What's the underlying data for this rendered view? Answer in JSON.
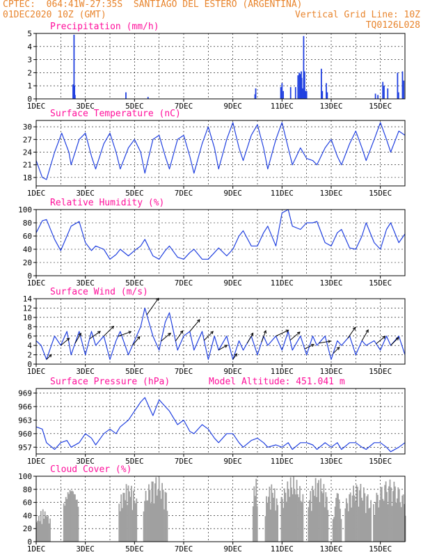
{
  "header": {
    "line1": "CPTEC:  064:41W-27:35S  SANTIAGO DEL ESTERO (ARGENTINA)",
    "line2_left": "01DEC2020 10Z (GMT)",
    "line2_right": "Vertical Grid Line: 10Z",
    "line3_right": "TQ0126L028",
    "model_altitude": "Model Altitude: 451.041 m"
  },
  "colors": {
    "header": "#e8842c",
    "panel_title": "#ff0f9b",
    "line": "#2040e0",
    "cloud": "#a0a0a0",
    "axis": "#000000"
  },
  "x_axis": {
    "start_day": 1,
    "end_day": 16,
    "tick_labels": [
      "1DEC",
      "3DEC",
      "5DEC",
      "7DEC",
      "9DEC",
      "11DEC",
      "13DEC",
      "15DEC"
    ],
    "tick_days": [
      1,
      3,
      5,
      7,
      9,
      11,
      13,
      15
    ]
  },
  "chart_data": [
    {
      "id": "precip",
      "type": "bar",
      "title": "Precipitation (mm/h)",
      "ylim": [
        0,
        5
      ],
      "yticks": [
        0,
        1,
        2,
        3,
        4,
        5
      ],
      "x_unit": "day of December 2020 (10Z)",
      "points": [
        [
          2.5,
          1.1
        ],
        [
          2.52,
          1.1
        ],
        [
          2.54,
          4.9
        ],
        [
          2.56,
          1.0
        ],
        [
          2.58,
          0.3
        ],
        [
          4.65,
          0.5
        ],
        [
          5.55,
          0.15
        ],
        [
          9.9,
          0.35
        ],
        [
          9.93,
          0.8
        ],
        [
          10.95,
          0.9
        ],
        [
          11.0,
          1.2
        ],
        [
          11.05,
          0.6
        ],
        [
          11.35,
          0.9
        ],
        [
          11.55,
          0.9
        ],
        [
          11.65,
          1.8
        ],
        [
          11.7,
          2.0
        ],
        [
          11.75,
          1.9
        ],
        [
          11.78,
          2.1
        ],
        [
          11.8,
          1.6
        ],
        [
          11.83,
          0.8
        ],
        [
          11.88,
          4.8
        ],
        [
          11.92,
          2.1
        ],
        [
          11.96,
          0.6
        ],
        [
          12.0,
          0.6
        ],
        [
          12.6,
          2.3
        ],
        [
          12.64,
          0.6
        ],
        [
          12.8,
          1.2
        ],
        [
          12.84,
          0.5
        ],
        [
          14.8,
          0.4
        ],
        [
          14.9,
          0.3
        ],
        [
          15.1,
          1.3
        ],
        [
          15.15,
          1.0
        ],
        [
          15.3,
          0.8
        ],
        [
          15.7,
          2.0
        ],
        [
          15.74,
          0.5
        ],
        [
          15.9,
          2.1
        ],
        [
          15.95,
          1.4
        ]
      ]
    },
    {
      "id": "temp",
      "type": "line",
      "title": "Surface Temperature (nC)",
      "ylim": [
        16,
        31.5
      ],
      "yticks": [
        18,
        21,
        24,
        27,
        30
      ],
      "x": [
        1.0,
        1.25,
        1.42,
        1.75,
        2.04,
        2.33,
        2.42,
        2.75,
        3.0,
        3.25,
        3.42,
        3.75,
        4.0,
        4.25,
        4.42,
        4.75,
        5.0,
        5.25,
        5.42,
        5.75,
        6.0,
        6.25,
        6.42,
        6.75,
        7.0,
        7.25,
        7.42,
        7.75,
        8.0,
        8.25,
        8.42,
        8.75,
        9.0,
        9.25,
        9.42,
        9.75,
        10.0,
        10.25,
        10.42,
        10.75,
        11.0,
        11.25,
        11.42,
        11.75,
        12.0,
        12.25,
        12.42,
        12.75,
        13.0,
        13.25,
        13.42,
        13.75,
        14.0,
        14.25,
        14.42,
        14.75,
        15.0,
        15.25,
        15.42,
        15.75,
        16.0
      ],
      "y": [
        22,
        18,
        17.5,
        24,
        28.5,
        24,
        21,
        27,
        28.5,
        23,
        20,
        26,
        28.5,
        24,
        20,
        25,
        27,
        24,
        19,
        27,
        28,
        23,
        20,
        27,
        28,
        23,
        19,
        26,
        30,
        25,
        20,
        27,
        31,
        25,
        22,
        28,
        30.5,
        25,
        20,
        27,
        31,
        25,
        21,
        25,
        22.5,
        22,
        21,
        25,
        27,
        23,
        21,
        26,
        29,
        25,
        22,
        27,
        31,
        27,
        24,
        29,
        28
      ]
    },
    {
      "id": "rh",
      "type": "line",
      "title": "Relative Humidity (%)",
      "ylim": [
        0,
        100
      ],
      "yticks": [
        0,
        20,
        40,
        60,
        80,
        100
      ],
      "x": [
        1.0,
        1.25,
        1.42,
        1.75,
        2.0,
        2.25,
        2.42,
        2.75,
        3.0,
        3.25,
        3.42,
        3.75,
        4.0,
        4.25,
        4.42,
        4.75,
        5.0,
        5.25,
        5.42,
        5.75,
        6.0,
        6.25,
        6.42,
        6.75,
        7.0,
        7.25,
        7.42,
        7.75,
        8.0,
        8.25,
        8.42,
        8.75,
        9.0,
        9.25,
        9.42,
        9.75,
        10.0,
        10.25,
        10.42,
        10.75,
        11.0,
        11.25,
        11.42,
        11.75,
        12.0,
        12.25,
        12.42,
        12.75,
        13.0,
        13.25,
        13.42,
        13.75,
        14.0,
        14.25,
        14.42,
        14.75,
        15.0,
        15.25,
        15.42,
        15.75,
        16.0
      ],
      "y": [
        65,
        83,
        85,
        55,
        38,
        60,
        75,
        82,
        50,
        38,
        45,
        40,
        25,
        32,
        40,
        30,
        38,
        45,
        55,
        30,
        25,
        38,
        45,
        28,
        25,
        35,
        40,
        25,
        25,
        35,
        42,
        30,
        40,
        60,
        68,
        45,
        45,
        65,
        75,
        45,
        95,
        100,
        75,
        70,
        80,
        80,
        82,
        50,
        45,
        65,
        70,
        42,
        40,
        60,
        80,
        50,
        40,
        70,
        80,
        50,
        63
      ]
    },
    {
      "id": "wind",
      "type": "line",
      "title": "Surface Wind (m/s)",
      "ylim": [
        0,
        14
      ],
      "yticks": [
        0,
        2,
        4,
        6,
        8,
        10,
        12,
        14
      ],
      "x": [
        1.0,
        1.2,
        1.42,
        1.75,
        2.0,
        2.25,
        2.42,
        2.75,
        3.0,
        3.25,
        3.42,
        3.75,
        4.0,
        4.25,
        4.42,
        4.75,
        5.0,
        5.25,
        5.42,
        5.75,
        6.0,
        6.25,
        6.42,
        6.75,
        7.0,
        7.25,
        7.42,
        7.75,
        8.0,
        8.25,
        8.42,
        8.75,
        9.0,
        9.25,
        9.42,
        9.75,
        10.0,
        10.25,
        10.42,
        10.75,
        11.0,
        11.25,
        11.42,
        11.75,
        12.0,
        12.25,
        12.42,
        12.75,
        13.0,
        13.25,
        13.42,
        13.75,
        14.0,
        14.25,
        14.42,
        14.75,
        15.0,
        15.25,
        15.42,
        15.75,
        16.0
      ],
      "y": [
        5,
        4,
        1,
        6,
        4,
        7,
        2,
        7,
        2,
        7,
        4,
        6,
        1,
        5,
        7,
        2,
        5,
        8,
        12,
        6,
        3,
        9,
        11,
        3,
        6,
        7,
        3,
        7,
        1,
        6,
        3,
        6,
        1,
        5,
        3,
        6,
        2,
        6,
        4,
        6,
        3,
        7,
        3,
        6,
        2,
        6,
        4,
        6,
        1,
        5,
        4,
        6,
        2,
        5,
        4,
        5,
        3,
        6,
        4,
        6,
        2
      ],
      "vectors_at": [
        1.42,
        2.0,
        2.58,
        3.17,
        3.75,
        4.33,
        4.92,
        5.5,
        6.08,
        6.67,
        7.25,
        7.83,
        8.42,
        9.0,
        9.58,
        10.17,
        10.75,
        11.33,
        11.92,
        12.5,
        13.08,
        13.67,
        14.25,
        14.83,
        15.42
      ],
      "vector_dir_deg": [
        225,
        230,
        210,
        235,
        225,
        250,
        220,
        215,
        230,
        215,
        220,
        225,
        240,
        215,
        210,
        200,
        245,
        230,
        245,
        260,
        225,
        215,
        210,
        230,
        225
      ]
    },
    {
      "id": "psfc",
      "type": "line",
      "title": "Surface Pressure (hPa)",
      "ylim": [
        955.5,
        970
      ],
      "yticks": [
        957,
        960,
        963,
        966,
        969
      ],
      "x": [
        1.0,
        1.25,
        1.42,
        1.75,
        2.0,
        2.25,
        2.42,
        2.75,
        3.0,
        3.25,
        3.42,
        3.75,
        4.0,
        4.25,
        4.42,
        4.75,
        5.0,
        5.25,
        5.42,
        5.75,
        6.0,
        6.25,
        6.42,
        6.75,
        7.0,
        7.25,
        7.42,
        7.75,
        8.0,
        8.25,
        8.42,
        8.75,
        9.0,
        9.25,
        9.42,
        9.75,
        10.0,
        10.25,
        10.42,
        10.75,
        11.0,
        11.25,
        11.42,
        11.75,
        12.0,
        12.25,
        12.42,
        12.75,
        13.0,
        13.25,
        13.42,
        13.75,
        14.0,
        14.25,
        14.42,
        14.75,
        15.0,
        15.25,
        15.42,
        15.75,
        16.0
      ],
      "y": [
        961.5,
        961,
        958,
        956.5,
        958,
        958.5,
        957,
        958,
        960,
        959,
        957.5,
        960,
        961,
        960,
        961.5,
        963,
        965,
        967,
        968,
        964,
        967.5,
        966,
        965,
        962,
        963,
        960.5,
        960,
        962,
        961,
        959,
        958,
        960,
        960,
        958,
        957,
        958.5,
        959,
        958,
        957,
        957.5,
        957,
        958,
        956.5,
        958,
        958,
        957.5,
        956.5,
        958,
        957,
        958,
        956.5,
        958,
        958,
        957,
        956.5,
        958,
        958,
        957,
        956,
        957,
        958
      ]
    },
    {
      "id": "cloud",
      "type": "area",
      "title": "Cloud Cover (%)",
      "ylim": [
        0,
        100
      ],
      "yticks": [
        0,
        20,
        40,
        60,
        80,
        100
      ],
      "segments": [
        {
          "from": 1.0,
          "to": 1.55,
          "peak": 50
        },
        {
          "from": 2.1,
          "to": 2.7,
          "peak": 90
        },
        {
          "from": 4.35,
          "to": 5.1,
          "peak": 90
        },
        {
          "from": 5.35,
          "to": 6.35,
          "peak": 100
        },
        {
          "from": 9.8,
          "to": 10.0,
          "peak": 100
        },
        {
          "from": 10.3,
          "to": 10.8,
          "peak": 90
        },
        {
          "from": 10.95,
          "to": 11.85,
          "peak": 100
        },
        {
          "from": 12.05,
          "to": 12.85,
          "peak": 100
        },
        {
          "from": 13.05,
          "to": 13.4,
          "peak": 75
        },
        {
          "from": 13.55,
          "to": 14.6,
          "peak": 90
        },
        {
          "from": 14.7,
          "to": 16.0,
          "peak": 95
        }
      ]
    }
  ]
}
